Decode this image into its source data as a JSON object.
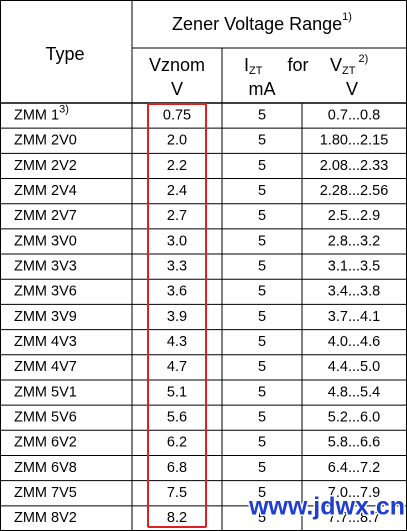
{
  "header": {
    "type": "Type",
    "title": "Zener Voltage Range",
    "title_note": "1)",
    "vznom": "Vznom",
    "vznom_unit": "V",
    "izt_symbol": "I",
    "izt_subscript": "ZT",
    "izt_unit": "mA",
    "for": "for",
    "vzt_symbol": "V",
    "vzt_subscript": "ZT",
    "vzt_note": "2)",
    "vzt_unit": "V"
  },
  "table": {
    "first_row_note": "3)",
    "rows": [
      [
        "ZMM 1",
        "0.75",
        "5",
        "0.7...0.8"
      ],
      [
        "ZMM 2V0",
        "2.0",
        "5",
        "1.80...2.15"
      ],
      [
        "ZMM 2V2",
        "2.2",
        "5",
        "2.08...2.33"
      ],
      [
        "ZMM 2V4",
        "2.4",
        "5",
        "2.28...2.56"
      ],
      [
        "ZMM 2V7",
        "2.7",
        "5",
        "2.5...2.9"
      ],
      [
        "ZMM 3V0",
        "3.0",
        "5",
        "2.8...3.2"
      ],
      [
        "ZMM 3V3",
        "3.3",
        "5",
        "3.1...3.5"
      ],
      [
        "ZMM 3V6",
        "3.6",
        "5",
        "3.4...3.8"
      ],
      [
        "ZMM 3V9",
        "3.9",
        "5",
        "3.7...4.1"
      ],
      [
        "ZMM 4V3",
        "4.3",
        "5",
        "4.0...4.6"
      ],
      [
        "ZMM 4V7",
        "4.7",
        "5",
        "4.4...5.0"
      ],
      [
        "ZMM 5V1",
        "5.1",
        "5",
        "4.8...5.4"
      ],
      [
        "ZMM 5V6",
        "5.6",
        "5",
        "5.2...6.0"
      ],
      [
        "ZMM 6V2",
        "6.2",
        "5",
        "5.8...6.6"
      ],
      [
        "ZMM 6V8",
        "6.8",
        "5",
        "6.4...7.2"
      ],
      [
        "ZMM 7V5",
        "7.5",
        "5",
        "7.0...7.9"
      ],
      [
        "ZMM 8V2",
        "8.2",
        "5",
        "7.7...8.7"
      ]
    ]
  },
  "watermark": "www.jdwx.cn"
}
